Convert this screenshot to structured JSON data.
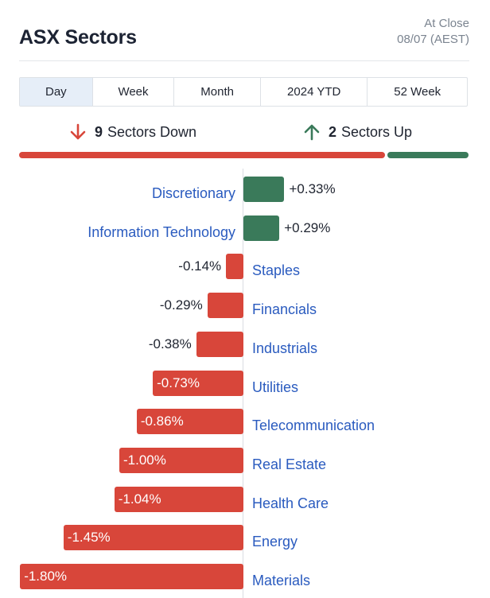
{
  "header": {
    "title": "ASX Sectors",
    "close_label": "At Close",
    "close_date": "08/07 (AEST)"
  },
  "tabs": [
    {
      "label": "Day",
      "active": true
    },
    {
      "label": "Week",
      "active": false
    },
    {
      "label": "Month",
      "active": false
    },
    {
      "label": "2024 YTD",
      "active": false
    },
    {
      "label": "52 Week",
      "active": false
    }
  ],
  "summary": {
    "down_count": "9",
    "down_label": "Sectors Down",
    "up_count": "2",
    "up_label": "Sectors Up"
  },
  "colors": {
    "up": "#3a7a5a",
    "down": "#d8463a",
    "link": "#2a5bbf"
  },
  "chart_data": {
    "type": "bar",
    "orientation": "horizontal",
    "categories": [
      "Discretionary",
      "Information Technology",
      "Staples",
      "Financials",
      "Industrials",
      "Utilities",
      "Telecommunication",
      "Real Estate",
      "Health Care",
      "Energy",
      "Materials"
    ],
    "values": [
      0.33,
      0.29,
      -0.14,
      -0.29,
      -0.38,
      -0.73,
      -0.86,
      -1.0,
      -1.04,
      -1.45,
      -1.8
    ],
    "value_labels": [
      "+0.33%",
      "+0.29%",
      "-0.14%",
      "-0.29%",
      "-0.38%",
      "-0.73%",
      "-0.86%",
      "-1.00%",
      "-1.04%",
      "-1.45%",
      "-1.80%"
    ],
    "unit": "%"
  }
}
